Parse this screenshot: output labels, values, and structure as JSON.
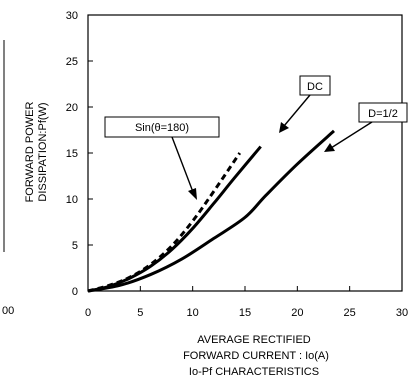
{
  "chart_data": {
    "type": "line",
    "xlabel_lines": [
      "AVERAGE RECTIFIED",
      "FORWARD CURRENT : Io(A)"
    ],
    "caption": "Io-Pf CHARACTERISTICS",
    "ylabel_lines": [
      "FORWARD POWER",
      "DISSIPATION:Pf(W)"
    ],
    "xlim": [
      0,
      30
    ],
    "ylim": [
      0,
      30
    ],
    "x_ticks": [
      "0",
      "5",
      "10",
      "15",
      "20",
      "25",
      "30"
    ],
    "y_ticks": [
      "0",
      "5",
      "10",
      "15",
      "20",
      "25",
      "30"
    ],
    "partial_left_label": "00",
    "grid": false,
    "series": [
      {
        "name": "Sin(θ=180)",
        "style": "dashed",
        "x": [
          0,
          2,
          4,
          6,
          8,
          10,
          12,
          14.5
        ],
        "y": [
          0,
          0.6,
          1.5,
          2.9,
          4.9,
          7.6,
          10.8,
          15.0
        ]
      },
      {
        "name": "DC",
        "style": "solid",
        "x": [
          0,
          2,
          4,
          6,
          8,
          10,
          12,
          14,
          16.5
        ],
        "y": [
          0,
          0.5,
          1.4,
          2.7,
          4.5,
          6.8,
          9.5,
          12.3,
          15.7
        ]
      },
      {
        "name": "D=1/2",
        "style": "solid",
        "x": [
          0,
          3,
          6,
          9,
          12,
          15,
          17,
          20,
          23.5
        ],
        "y": [
          0,
          0.6,
          1.8,
          3.5,
          5.7,
          8.0,
          10.4,
          13.8,
          17.4
        ]
      }
    ]
  }
}
